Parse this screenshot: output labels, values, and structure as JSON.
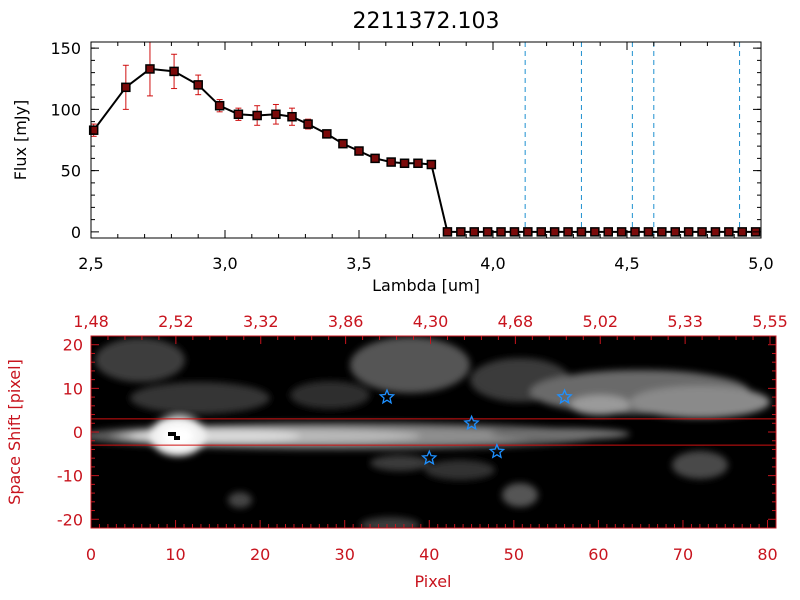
{
  "chart_data": [
    {
      "type": "line",
      "title": "2211372.103",
      "xlabel": "Lambda [um]",
      "ylabel": "Flux [mJy]",
      "xlim": [
        2.5,
        5.0
      ],
      "ylim": [
        -5,
        155
      ],
      "xticks": [
        "2.5",
        "3.0",
        "3.5",
        "4.0",
        "4.5",
        "5.0"
      ],
      "yticks": [
        "0",
        "50",
        "100",
        "150"
      ],
      "series": [
        {
          "x": [
            2.51,
            2.63,
            2.72,
            2.81,
            2.9,
            2.98,
            3.05,
            3.12,
            3.19,
            3.25,
            3.31,
            3.38,
            3.44,
            3.5,
            3.56,
            3.62,
            3.67,
            3.72,
            3.77,
            3.83,
            3.88,
            3.93,
            3.98,
            4.03,
            4.08,
            4.13,
            4.18,
            4.23,
            4.28,
            4.33,
            4.38,
            4.43,
            4.48,
            4.53,
            4.58,
            4.63,
            4.68,
            4.73,
            4.78,
            4.83,
            4.88,
            4.93,
            4.98
          ],
          "y": [
            83,
            118,
            133,
            131,
            120,
            103,
            96,
            95,
            96,
            94,
            88,
            80,
            72,
            66,
            60,
            57,
            56,
            56,
            55,
            0,
            0,
            0,
            0,
            0,
            0,
            0,
            0,
            0,
            0,
            0,
            0,
            0,
            0,
            0,
            0,
            0,
            0,
            0,
            0,
            0,
            0,
            0,
            0
          ],
          "errors": [
            5,
            18,
            22,
            14,
            8,
            5,
            5,
            8,
            8,
            7,
            4,
            3,
            3,
            2,
            2,
            2,
            2,
            2,
            2,
            0,
            0,
            0,
            0,
            0,
            0,
            0,
            0,
            0,
            0,
            0,
            0,
            0,
            0,
            0,
            0,
            0,
            0,
            0,
            0,
            0,
            0,
            0,
            0
          ],
          "marker": "square",
          "line_color": "#000000",
          "marker_color": "#7a0a0a",
          "error_color": "#d01010"
        }
      ],
      "vertical_lines": [
        4.12,
        4.33,
        4.52,
        4.6,
        4.92
      ],
      "vline_color": "#1e90d0"
    },
    {
      "type": "heatmap",
      "xlabel": "Pixel",
      "ylabel": "Space Shift [pixel]",
      "xlim": [
        0,
        81
      ],
      "ylim": [
        -22,
        22
      ],
      "xticks": [
        "0",
        "10",
        "20",
        "30",
        "40",
        "50",
        "60",
        "70",
        "80"
      ],
      "yticks": [
        "-20",
        "-10",
        "0",
        "10",
        "20"
      ],
      "top_axis_labels": [
        "1.48",
        "2.52",
        "3.32",
        "3.86",
        "4.30",
        "4.68",
        "5.02",
        "5.33",
        "5.55"
      ],
      "axis_color": "#c8141e",
      "extraction_band": [
        -3,
        3
      ],
      "stars": [
        {
          "x": 35,
          "y": 8
        },
        {
          "x": 45,
          "y": 2
        },
        {
          "x": 40,
          "y": -6
        },
        {
          "x": 48,
          "y": -4.5
        },
        {
          "x": 56,
          "y": 8
        }
      ],
      "star_color": "#1e90ff"
    }
  ]
}
